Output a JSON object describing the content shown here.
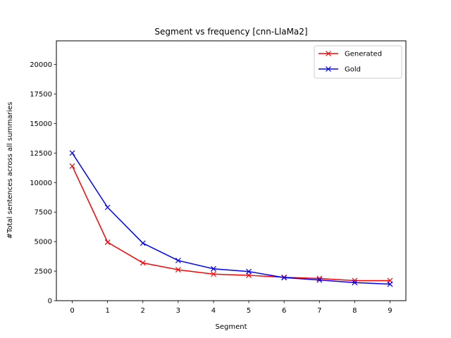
{
  "chart_data": {
    "type": "line",
    "title": "Segment vs frequency [cnn-LlaMa2]",
    "xlabel": "Segment",
    "ylabel": "#Total sentences across all summaries",
    "x": [
      0,
      1,
      2,
      3,
      4,
      5,
      6,
      7,
      8,
      9
    ],
    "x_ticks": [
      "0",
      "1",
      "2",
      "3",
      "4",
      "5",
      "6",
      "7",
      "8",
      "9"
    ],
    "xlim": [
      -0.45,
      9.45
    ],
    "ylim": [
      0,
      22000
    ],
    "y_ticks": [
      0,
      2500,
      5000,
      7500,
      10000,
      12500,
      15000,
      17500,
      20000
    ],
    "y_tick_labels": [
      "0",
      "2500",
      "5000",
      "7500",
      "10000",
      "12500",
      "15000",
      "17500",
      "20000"
    ],
    "grid": false,
    "legend_position": "top-right",
    "series": [
      {
        "name": "Generated",
        "color": "#ff0000",
        "marker": "x",
        "values": [
          11400,
          4950,
          3200,
          2620,
          2250,
          2150,
          1980,
          1880,
          1700,
          1700
        ]
      },
      {
        "name": "Gold",
        "color": "#0000ff",
        "marker": "x",
        "values": [
          12500,
          7900,
          4870,
          3400,
          2700,
          2470,
          1950,
          1750,
          1530,
          1400
        ]
      }
    ]
  }
}
